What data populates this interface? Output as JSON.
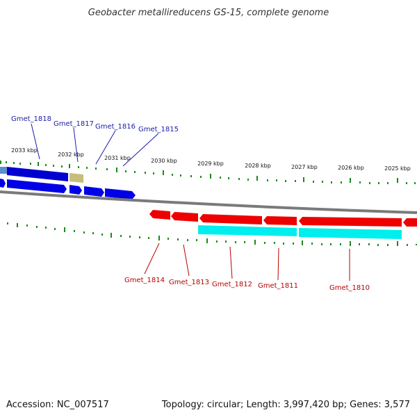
{
  "map": {
    "title": "Geobacter metallireducens GS-15, complete genome",
    "accession": "Accession: NC_007517",
    "summary": "Topology: circular; Length: 3,997,420 bp; Genes: 3,577"
  },
  "scale": {
    "ticks": [
      {
        "label": "2033 kbp",
        "kbp": 2033
      },
      {
        "label": "2032 kbp",
        "kbp": 2032
      },
      {
        "label": "2031 kbp",
        "kbp": 2031
      },
      {
        "label": "2030 kbp",
        "kbp": 2030
      },
      {
        "label": "2029 kbp",
        "kbp": 2029
      },
      {
        "label": "2028 kbp",
        "kbp": 2028
      },
      {
        "label": "2027 kbp",
        "kbp": 2027
      },
      {
        "label": "2026 kbp",
        "kbp": 2026
      },
      {
        "label": "2025 kbp",
        "kbp": 2025
      }
    ]
  },
  "genes": {
    "forward": [
      {
        "label": "Gmet_1818"
      },
      {
        "label": "Gmet_1817"
      },
      {
        "label": "Gmet_1816"
      },
      {
        "label": "Gmet_1815"
      }
    ],
    "reverse": [
      {
        "label": "Gmet_1814"
      },
      {
        "label": "Gmet_1813"
      },
      {
        "label": "Gmet_1812"
      },
      {
        "label": "Gmet_1811"
      },
      {
        "label": "Gmet_1810"
      }
    ]
  },
  "colors": {
    "forward_cds": "#0000e6",
    "reverse_cds": "#ee0000",
    "forward_gene_track": "#0000d0",
    "reverse_gene_track": "#00eeee",
    "other_feature": "#c8bd7a",
    "backbone": "#7a7a7a",
    "ticks": "#1a8a1a"
  }
}
